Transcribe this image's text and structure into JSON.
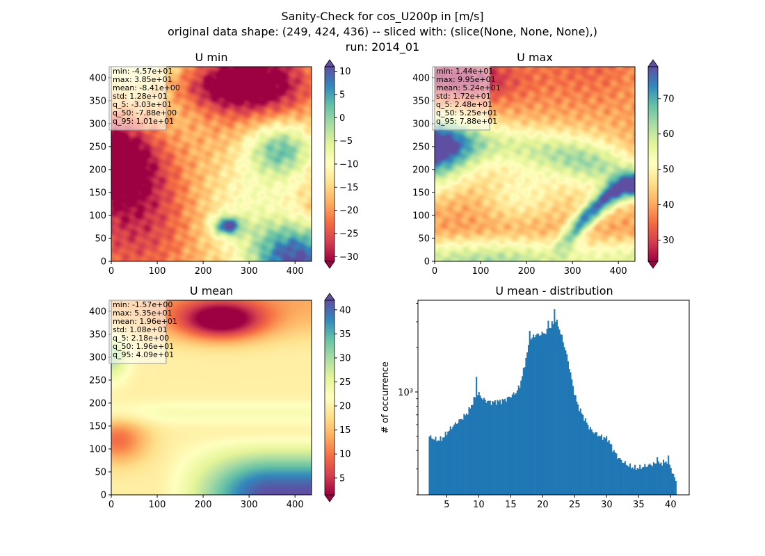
{
  "figure": {
    "title_lines": [
      "Sanity-Check for cos_U200p in [m/s]",
      "original data shape: (249, 424, 436) -- sliced with: (slice(None, None, None),)",
      "run: 2014_01"
    ]
  },
  "colormap": [
    "#9e0142",
    "#d53e4f",
    "#f46d43",
    "#fdae61",
    "#fee08b",
    "#ffffbf",
    "#e6f598",
    "#abdda4",
    "#66c2a5",
    "#3288bd",
    "#5e4fa2"
  ],
  "chart_data": [
    {
      "type": "heatmap",
      "title": "U min",
      "xlim": [
        0,
        436
      ],
      "ylim": [
        0,
        424
      ],
      "xticks": [
        0,
        100,
        200,
        300,
        400
      ],
      "yticks": [
        0,
        50,
        100,
        150,
        200,
        250,
        300,
        350,
        400
      ],
      "colorbar": {
        "range": [
          -31,
          11
        ],
        "ticks": [
          10,
          5,
          0,
          -5,
          -10,
          -15,
          -20,
          -25,
          -30
        ],
        "extend": "both"
      },
      "stats": [
        "min: -4.57e+01",
        "max: 3.85e+01",
        "mean: -8.41e+00",
        "std: 1.28e+01",
        "q_5: -3.03e+01",
        "q_50: -7.88e+00",
        "q_95: 1.01e+01"
      ]
    },
    {
      "type": "heatmap",
      "title": "U max",
      "xlim": [
        0,
        436
      ],
      "ylim": [
        0,
        424
      ],
      "xticks": [
        0,
        100,
        200,
        300,
        400
      ],
      "yticks": [
        0,
        50,
        100,
        150,
        200,
        250,
        300,
        350,
        400
      ],
      "colorbar": {
        "range": [
          24,
          79
        ],
        "ticks": [
          70,
          60,
          50,
          40,
          30
        ],
        "extend": "both"
      },
      "stats": [
        "min: 1.44e+01",
        "max: 9.95e+01",
        "mean: 5.24e+01",
        "std: 1.72e+01",
        "q_5: 2.48e+01",
        "q_50: 5.25e+01",
        "q_95: 7.88e+01"
      ]
    },
    {
      "type": "heatmap",
      "title": "U mean",
      "xlim": [
        0,
        436
      ],
      "ylim": [
        0,
        424
      ],
      "xticks": [
        0,
        100,
        200,
        300,
        400
      ],
      "yticks": [
        0,
        50,
        100,
        150,
        200,
        250,
        300,
        350,
        400
      ],
      "colorbar": {
        "range": [
          1.5,
          42
        ],
        "ticks": [
          40,
          35,
          30,
          25,
          20,
          15,
          10,
          5
        ],
        "extend": "both"
      },
      "stats": [
        "min: -1.57e+00",
        "max: 5.35e+01",
        "mean: 1.96e+01",
        "std: 1.08e+01",
        "q_5: 2.18e+00",
        "q_50: 1.96e+01",
        "q_95: 4.09e+01"
      ]
    },
    {
      "type": "bar",
      "title": "U mean - distribution",
      "ylabel": "# of occurrence",
      "yscale": "log",
      "xlim": [
        0.5,
        42.9
      ],
      "ylim": [
        200,
        4200
      ],
      "xticks": [
        5,
        10,
        15,
        20,
        25,
        30,
        35,
        40
      ],
      "yticks_major": [
        {
          "value": 1000,
          "label": "10³"
        }
      ],
      "yticks_minor": [
        200,
        300,
        400,
        500,
        600,
        700,
        800,
        900,
        2000,
        3000,
        4000
      ],
      "bar_color": "#1f77b4",
      "bin_range": [
        2.18,
        40.9
      ],
      "bin_count": 200,
      "profile": [
        [
          2.2,
          500
        ],
        [
          3.0,
          480
        ],
        [
          3.6,
          470
        ],
        [
          4.2,
          480
        ],
        [
          4.6,
          500
        ],
        [
          5.2,
          540
        ],
        [
          6.0,
          590
        ],
        [
          6.8,
          630
        ],
        [
          7.5,
          670
        ],
        [
          8.2,
          720
        ],
        [
          8.8,
          800
        ],
        [
          9.4,
          920
        ],
        [
          9.8,
          980
        ],
        [
          10.2,
          950
        ],
        [
          10.6,
          900
        ],
        [
          11.2,
          870
        ],
        [
          12.0,
          850
        ],
        [
          12.8,
          860
        ],
        [
          13.6,
          870
        ],
        [
          14.4,
          900
        ],
        [
          15.2,
          950
        ],
        [
          15.8,
          990
        ],
        [
          16.4,
          1100
        ],
        [
          17.0,
          1400
        ],
        [
          17.6,
          1900
        ],
        [
          18.2,
          2300
        ],
        [
          18.8,
          2450
        ],
        [
          19.4,
          2450
        ],
        [
          20.0,
          2500
        ],
        [
          20.6,
          2550
        ],
        [
          21.0,
          2700
        ],
        [
          21.6,
          2950
        ],
        [
          22.0,
          3100
        ],
        [
          22.4,
          2850
        ],
        [
          23.0,
          2350
        ],
        [
          23.6,
          1900
        ],
        [
          24.2,
          1450
        ],
        [
          24.8,
          1050
        ],
        [
          25.4,
          830
        ],
        [
          26.0,
          730
        ],
        [
          26.6,
          650
        ],
        [
          27.2,
          580
        ],
        [
          27.8,
          540
        ],
        [
          28.4,
          520
        ],
        [
          29.0,
          500
        ],
        [
          29.6,
          490
        ],
        [
          30.2,
          480
        ],
        [
          30.8,
          420
        ],
        [
          31.4,
          380
        ],
        [
          32.0,
          350
        ],
        [
          32.6,
          335
        ],
        [
          33.2,
          320
        ],
        [
          33.8,
          310
        ],
        [
          34.4,
          305
        ],
        [
          35.0,
          305
        ],
        [
          35.6,
          310
        ],
        [
          36.2,
          315
        ],
        [
          36.8,
          320
        ],
        [
          37.4,
          325
        ],
        [
          38.0,
          325
        ],
        [
          38.6,
          330
        ],
        [
          39.2,
          335
        ],
        [
          39.6,
          340
        ],
        [
          40.0,
          310
        ],
        [
          40.4,
          270
        ],
        [
          40.9,
          250
        ]
      ],
      "spikes": [
        {
          "x": 9.7,
          "value": 1270
        },
        {
          "x": 21.9,
          "value": 3650
        },
        {
          "x": 20.9,
          "value": 3050
        },
        {
          "x": 17.9,
          "value": 2600
        },
        {
          "x": 37.9,
          "value": 360
        },
        {
          "x": 39.7,
          "value": 370
        }
      ]
    }
  ]
}
